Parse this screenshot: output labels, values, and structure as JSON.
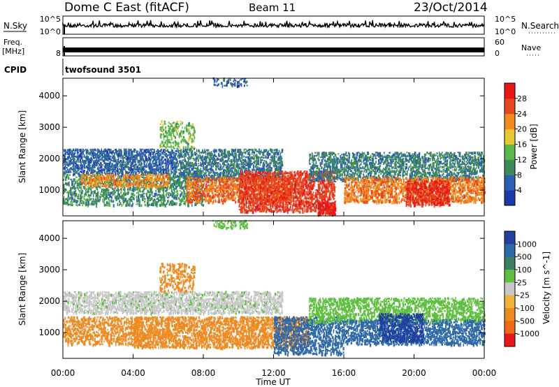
{
  "header": {
    "station": "Dome C East (fitACF)",
    "beam": "Beam 11",
    "date": "23/Oct/2014"
  },
  "strips": {
    "nsky_label": "N.Sky",
    "nsky_ticks": [
      "10^5",
      "10^0"
    ],
    "nsearch_label": "N.Search",
    "nsearch_ticks": [
      "10^5",
      "10^0"
    ],
    "freq_label": "Freq.",
    "freq_unit": "[MHz]",
    "freq_ticks": [
      "8"
    ],
    "nave_label": "Nave",
    "nave_ticks": [
      "60",
      "0"
    ],
    "cpid_label": "CPID",
    "cpid_value": "twofsound 3501"
  },
  "colors": {
    "power": [
      "#1b3aa6",
      "#2d5fb0",
      "#3e8a5a",
      "#5cb84a",
      "#e9c636",
      "#f28a1d",
      "#e8471e",
      "#e81818"
    ],
    "velocity": [
      "#2140a0",
      "#2f6aa8",
      "#3e7f63",
      "#5fbf3f",
      "#c8c8c8",
      "#f0b23a",
      "#ee8a22",
      "#f06a16",
      "#e81818"
    ]
  },
  "chart_data": [
    {
      "type": "heatmap",
      "title": "Power",
      "xlabel": "Time UT",
      "ylabel": "Slant Range [km]",
      "xlim": [
        "00:00",
        "24:00"
      ],
      "ylim": [
        180,
        4560
      ],
      "x_ticks": [
        "00:00",
        "04:00",
        "08:00",
        "12:00",
        "16:00",
        "20:00",
        "00:00"
      ],
      "y_ticks": [
        1000,
        2000,
        3000,
        4000
      ],
      "colorbar": {
        "label": "Power [dB]",
        "range": [
          0,
          32
        ],
        "ticks": [
          "4",
          "8",
          "12",
          "16",
          "20",
          "24",
          "28"
        ]
      },
      "regions": [
        {
          "t0": 0.0,
          "t1": 6.5,
          "r0": 1500,
          "r1": 2300,
          "value": 6,
          "density": 0.6
        },
        {
          "t0": 0.0,
          "t1": 8.0,
          "r0": 500,
          "r1": 1500,
          "value": 10,
          "density": 0.45
        },
        {
          "t0": 1.0,
          "t1": 6.0,
          "r0": 1100,
          "r1": 1500,
          "value": 22,
          "density": 0.5
        },
        {
          "t0": 5.5,
          "t1": 7.5,
          "r0": 2300,
          "r1": 3200,
          "value": 14,
          "density": 0.35
        },
        {
          "t0": 6.5,
          "t1": 12.5,
          "r0": 1300,
          "r1": 2300,
          "value": 8,
          "density": 0.55
        },
        {
          "t0": 8.5,
          "t1": 10.5,
          "r0": 4300,
          "r1": 4560,
          "value": 6,
          "density": 0.35
        },
        {
          "t0": 7.0,
          "t1": 13.0,
          "r0": 600,
          "r1": 1400,
          "value": 24,
          "density": 0.55
        },
        {
          "t0": 10.0,
          "t1": 15.5,
          "r0": 300,
          "r1": 1600,
          "value": 27,
          "density": 0.6
        },
        {
          "t0": 14.5,
          "t1": 15.5,
          "r0": 200,
          "r1": 600,
          "value": 30,
          "density": 0.9
        },
        {
          "t0": 14.0,
          "t1": 24.0,
          "r0": 1300,
          "r1": 2200,
          "value": 9,
          "density": 0.5
        },
        {
          "t0": 16.0,
          "t1": 24.0,
          "r0": 600,
          "r1": 1400,
          "value": 23,
          "density": 0.6
        },
        {
          "t0": 19.5,
          "t1": 22.0,
          "r0": 500,
          "r1": 1300,
          "value": 29,
          "density": 0.6
        }
      ]
    },
    {
      "type": "heatmap",
      "title": "Velocity",
      "xlabel": "Time UT",
      "ylabel": "Slant Range [km]",
      "xlim": [
        "00:00",
        "24:00"
      ],
      "ylim": [
        180,
        4560
      ],
      "x_ticks": [
        "00:00",
        "04:00",
        "08:00",
        "12:00",
        "16:00",
        "20:00",
        "00:00"
      ],
      "y_ticks": [
        1000,
        2000,
        3000,
        4000
      ],
      "colorbar": {
        "label": "Velocity [m s^-1]",
        "ticks": [
          "1000",
          "500",
          "100",
          "25",
          "-25",
          "-100",
          "-500",
          "-1000"
        ]
      },
      "regions": [
        {
          "t0": 0.0,
          "t1": 12.5,
          "r0": 1600,
          "r1": 2300,
          "value": 0,
          "density": 0.6
        },
        {
          "t0": 0.0,
          "t1": 4.5,
          "r0": 600,
          "r1": 1500,
          "value": -150,
          "density": 0.5
        },
        {
          "t0": 4.0,
          "t1": 14.0,
          "r0": 500,
          "r1": 1500,
          "value": -300,
          "density": 0.6
        },
        {
          "t0": 5.5,
          "t1": 7.5,
          "r0": 2300,
          "r1": 3200,
          "value": -150,
          "density": 0.35
        },
        {
          "t0": 12.0,
          "t1": 16.0,
          "r0": 300,
          "r1": 1500,
          "value": 200,
          "density": 0.5
        },
        {
          "t0": 14.0,
          "t1": 24.0,
          "r0": 1300,
          "r1": 2100,
          "value": 15,
          "density": 0.5
        },
        {
          "t0": 16.0,
          "t1": 24.0,
          "r0": 600,
          "r1": 1400,
          "value": 150,
          "density": 0.55
        },
        {
          "t0": 18.0,
          "t1": 20.5,
          "r0": 700,
          "r1": 1600,
          "value": 700,
          "density": 0.55
        },
        {
          "t0": 8.5,
          "t1": 10.5,
          "r0": 4300,
          "r1": 4560,
          "value": 10,
          "density": 0.35
        }
      ]
    }
  ],
  "axis_titles": {
    "time": "Time UT",
    "range": "Slant Range [km]",
    "power": "Power [dB]",
    "velocity": "Velocity [m s^-1]"
  }
}
